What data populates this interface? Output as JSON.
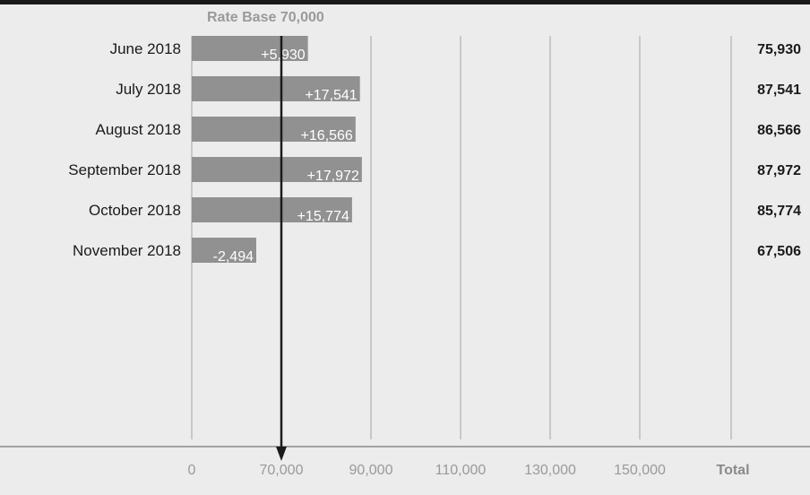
{
  "chart_data": {
    "type": "bar",
    "subtype": "waterfall-variance",
    "base_label": "Rate Base 70,000",
    "base_value": 70000,
    "categories": [
      "June 2018",
      "July 2018",
      "August 2018",
      "September 2018",
      "October 2018",
      "November 2018"
    ],
    "deltas": [
      5930,
      17541,
      16566,
      17972,
      15774,
      -2494
    ],
    "delta_labels": [
      "+5,930",
      "+17,541",
      "+16,566",
      "+17,972",
      "+15,774",
      "-2,494"
    ],
    "totals": [
      "75,930",
      "87,541",
      "86,566",
      "87,972",
      "85,774",
      "67,506"
    ],
    "x_ticks": [
      {
        "value": 0,
        "label": "0"
      },
      {
        "value": 70000,
        "label": "70,000"
      },
      {
        "value": 90000,
        "label": "90,000"
      },
      {
        "value": 110000,
        "label": "110,000"
      },
      {
        "value": 130000,
        "label": "130,000"
      },
      {
        "value": 150000,
        "label": "150,000"
      }
    ],
    "total_header": "Total",
    "colors": {
      "bar": "#919191",
      "grid": "#a3a3a3",
      "background": "#ececec",
      "arrow": "#1a1a1a"
    }
  }
}
